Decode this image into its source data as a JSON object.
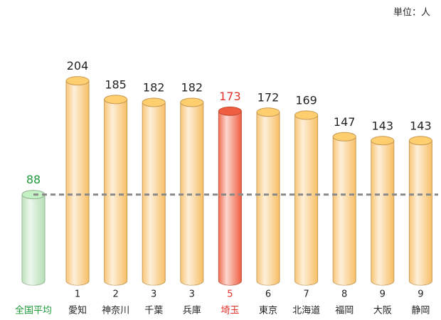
{
  "chart_data": {
    "type": "bar",
    "unit_label": "単位：人",
    "categories": [
      "全国平均",
      "愛知",
      "神奈川",
      "千葉",
      "兵庫",
      "埼玉",
      "東京",
      "北海道",
      "福岡",
      "大阪",
      "静岡"
    ],
    "ranks": [
      null,
      1,
      2,
      3,
      3,
      5,
      6,
      7,
      8,
      9,
      9
    ],
    "values": [
      88,
      204,
      185,
      182,
      182,
      173,
      172,
      169,
      147,
      143,
      143
    ],
    "colors": [
      "#b5dfb5",
      "#f8bf66",
      "#f8bf66",
      "#f8bf66",
      "#f8bf66",
      "#ef5e40",
      "#f8bf66",
      "#f8bf66",
      "#f8bf66",
      "#f8bf66",
      "#f8bf66"
    ],
    "label_colors": [
      "#1f9a3a",
      "#222222",
      "#222222",
      "#222222",
      "#222222",
      "#e2302a",
      "#222222",
      "#222222",
      "#222222",
      "#222222",
      "#222222"
    ],
    "ylim": [
      0,
      240
    ],
    "reference_line": {
      "value_index": 0,
      "color": "#8a8a8a"
    }
  }
}
